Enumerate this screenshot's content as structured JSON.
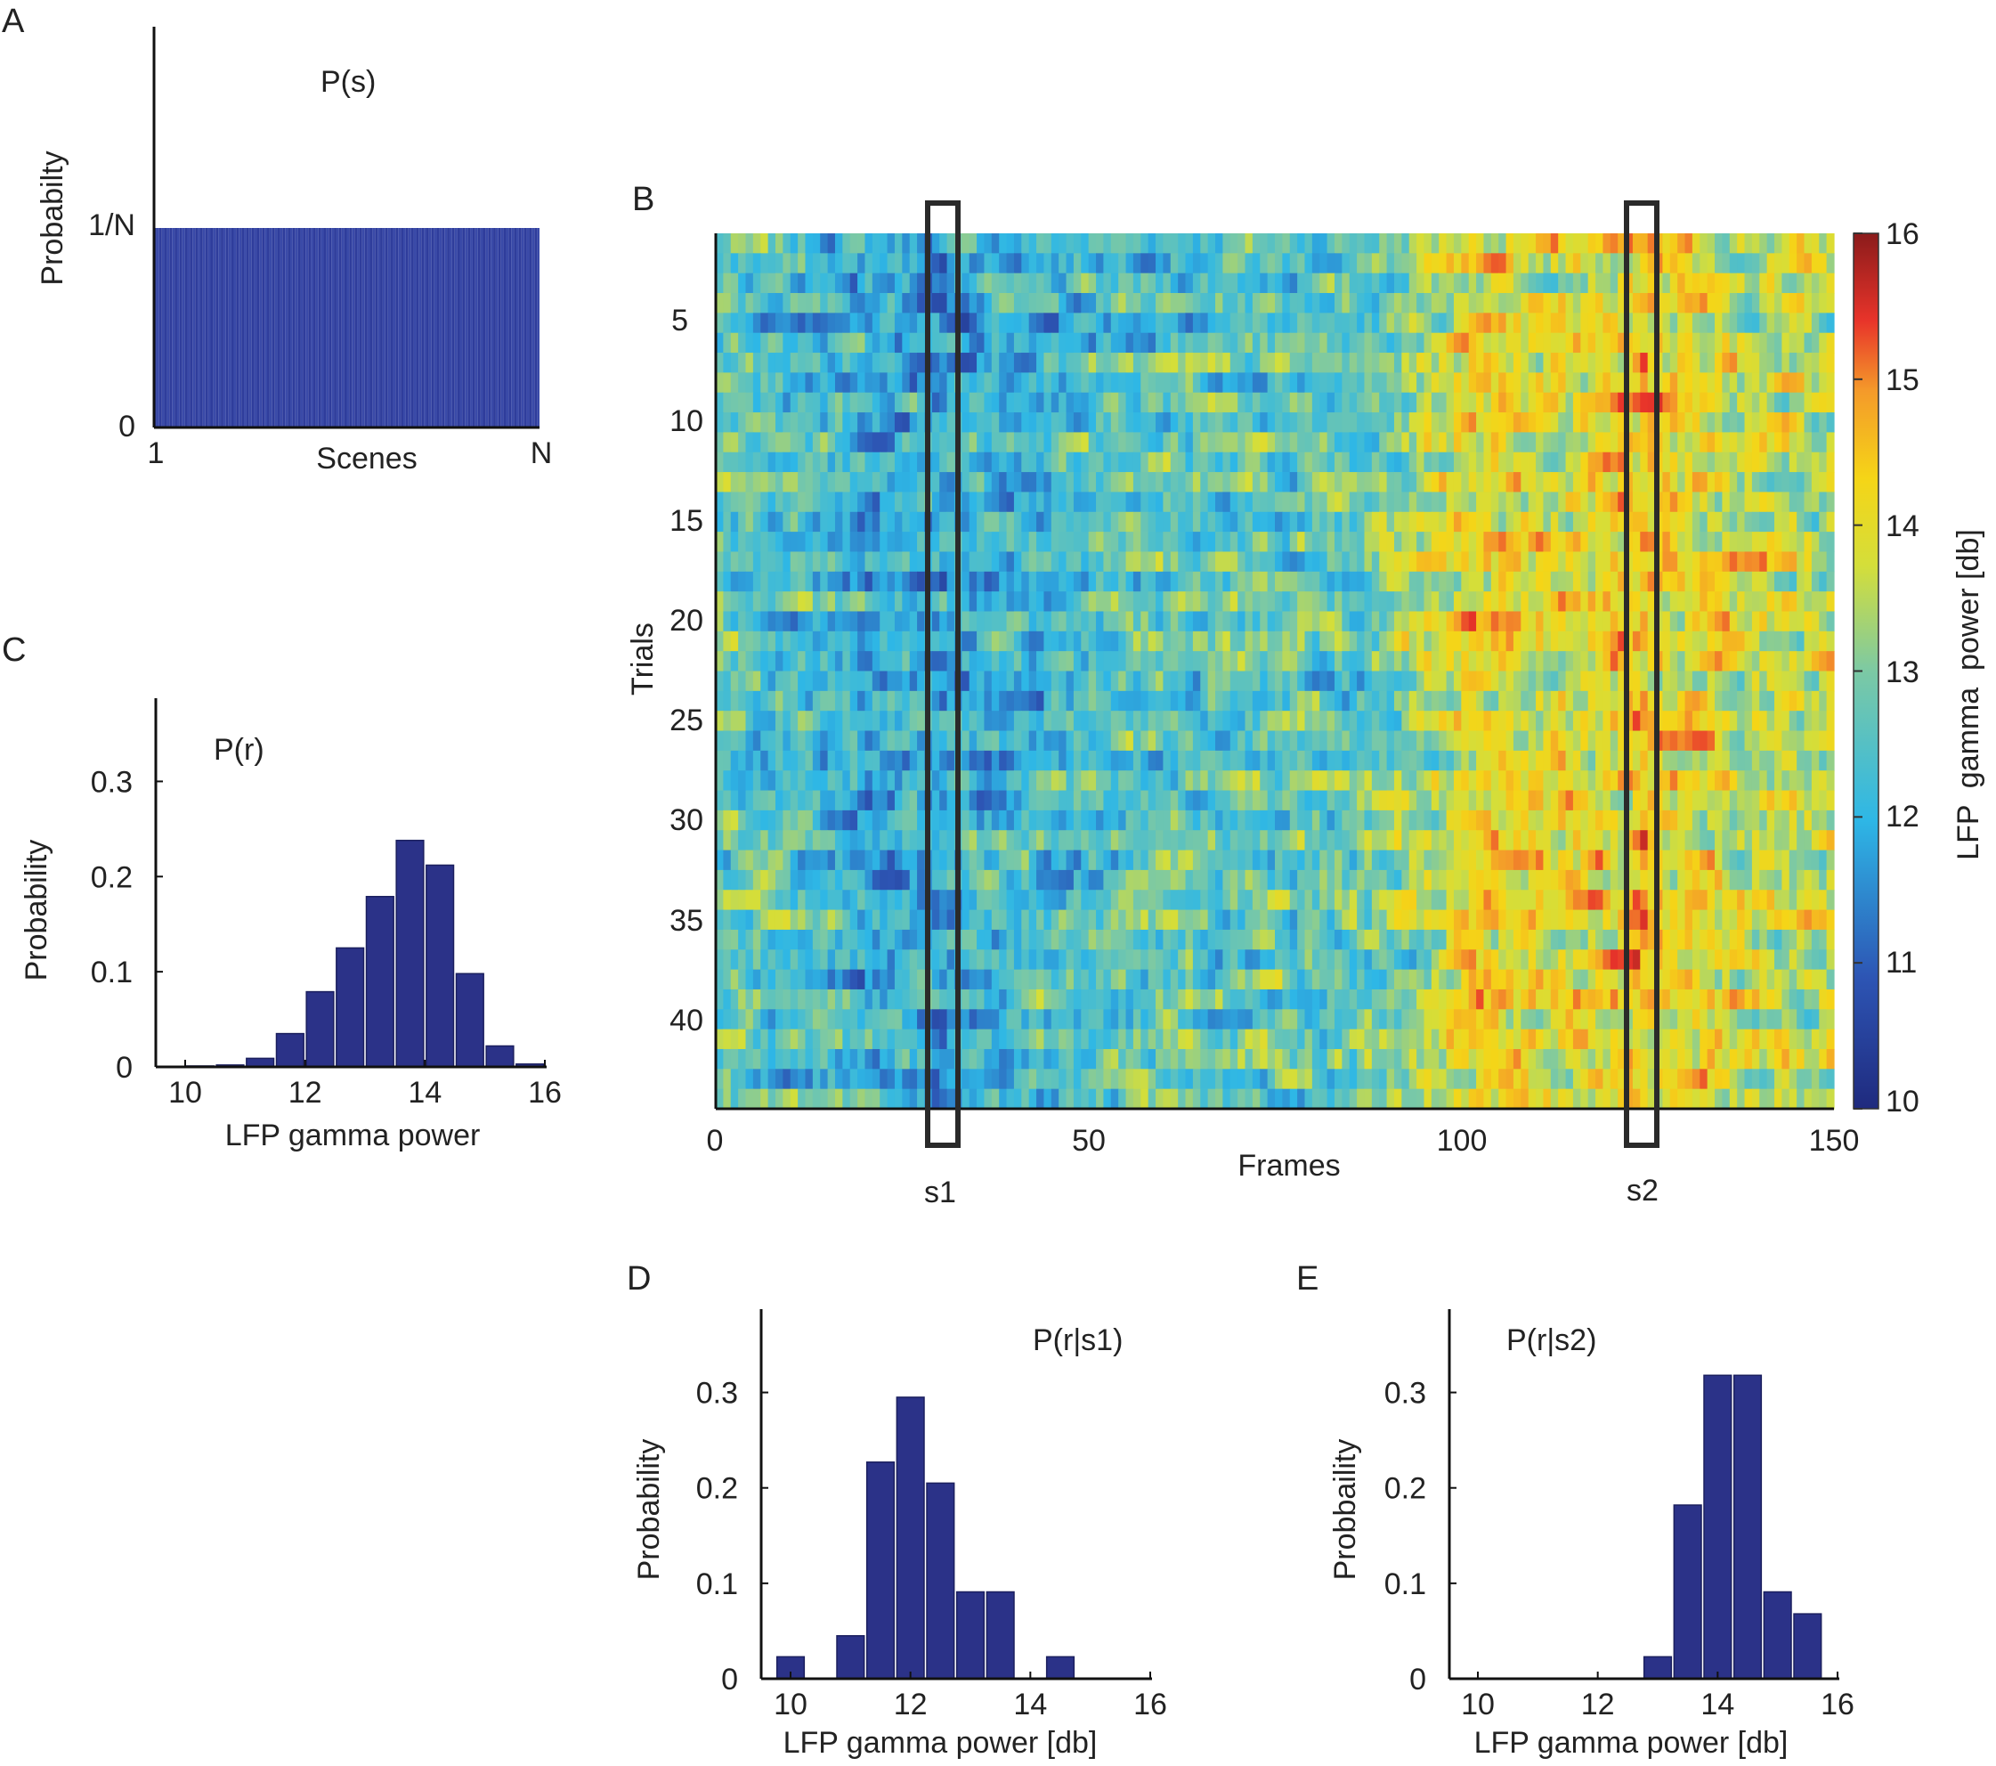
{
  "chart_data": [
    {
      "id": "A",
      "type": "bar",
      "panel_label": "A",
      "annotation": "P(s)",
      "xlabel": "Scenes",
      "ylabel": "Probabilty",
      "x_tick_labels": [
        "1",
        "N"
      ],
      "y_tick_labels": [
        "0",
        "1/N"
      ],
      "n_scenes": 150,
      "value": 1.0,
      "note": "uniform distribution, value is 1/N"
    },
    {
      "id": "B",
      "type": "heatmap",
      "panel_label": "B",
      "xlabel": "Frames",
      "ylabel": "Trials",
      "xlim": [
        0,
        150
      ],
      "ylim": [
        1,
        44
      ],
      "x_ticks": [
        0,
        50,
        100,
        150
      ],
      "y_ticks": [
        5,
        10,
        15,
        20,
        25,
        30,
        35,
        40
      ],
      "n_frames": 150,
      "n_trials": 44,
      "colorbar": {
        "label": "LFP  gamma  power [db]",
        "min": 10,
        "max": 16,
        "ticks": [
          10,
          11,
          12,
          13,
          14,
          15,
          16
        ]
      },
      "highlights": [
        {
          "label": "s1",
          "frame": 30
        },
        {
          "label": "s2",
          "frame": 124
        }
      ],
      "frame_mean_profile": {
        "frames": [
          0,
          20,
          28,
          30,
          32,
          45,
          60,
          85,
          95,
          100,
          110,
          120,
          124,
          128,
          140,
          150
        ],
        "mean_power": [
          12.7,
          12.1,
          11.9,
          11.9,
          12.0,
          12.3,
          12.7,
          12.6,
          13.4,
          14.0,
          13.9,
          14.1,
          14.3,
          14.0,
          13.6,
          13.5
        ]
      }
    },
    {
      "id": "C",
      "type": "bar",
      "panel_label": "C",
      "annotation": "P(r)",
      "xlabel": "LFP gamma power",
      "ylabel": "Probability",
      "xlim": [
        10,
        16
      ],
      "ylim": [
        0,
        0.35
      ],
      "x_ticks": [
        10,
        12,
        14,
        16
      ],
      "y_ticks": [
        0,
        0.1,
        0.2,
        0.3
      ],
      "x_tick_labels": [
        "10",
        "12",
        "14",
        "16"
      ],
      "y_tick_labels": [
        "0",
        "0.1",
        "0.2",
        "0.3"
      ],
      "bin_width": 0.5,
      "bins": [
        10,
        10.5,
        11,
        11.5,
        12,
        12.5,
        13,
        13.5,
        14,
        14.5,
        15,
        15.5
      ],
      "values": [
        0.001,
        0.002,
        0.009,
        0.035,
        0.079,
        0.125,
        0.179,
        0.238,
        0.212,
        0.098,
        0.022,
        0.003
      ]
    },
    {
      "id": "D",
      "type": "bar",
      "panel_label": "D",
      "annotation": "P(r|s1)",
      "xlabel": "LFP gamma power [db]",
      "ylabel": "Probability",
      "xlim": [
        10,
        16
      ],
      "ylim": [
        0,
        0.35
      ],
      "x_ticks": [
        10,
        12,
        14,
        16
      ],
      "y_ticks": [
        0,
        0.1,
        0.2,
        0.3
      ],
      "x_tick_labels": [
        "10",
        "12",
        "14",
        "16"
      ],
      "y_tick_labels": [
        "0",
        "0.1",
        "0.2",
        "0.3"
      ],
      "bin_width": 0.5,
      "bins": [
        9.75,
        10.25,
        10.75,
        11.25,
        11.75,
        12.25,
        12.75,
        13.25,
        13.75,
        14.25
      ],
      "values": [
        0.023,
        0,
        0.045,
        0.227,
        0.295,
        0.205,
        0.091,
        0.091,
        0,
        0.023
      ]
    },
    {
      "id": "E",
      "type": "bar",
      "panel_label": "E",
      "annotation": "P(r|s2)",
      "xlabel": "LFP gamma power [db]",
      "ylabel": "Probbaility",
      "xlim": [
        10,
        16
      ],
      "ylim": [
        0,
        0.35
      ],
      "x_ticks": [
        10,
        12,
        14,
        16
      ],
      "y_ticks": [
        0,
        0.1,
        0.2,
        0.3
      ],
      "x_tick_labels": [
        "10",
        "12",
        "14",
        "16"
      ],
      "y_tick_labels": [
        "0",
        "0.1",
        "0.2",
        "0.3"
      ],
      "bin_width": 0.5,
      "bins": [
        12.75,
        13.25,
        13.75,
        14.25,
        14.75,
        15.25
      ],
      "values": [
        0.023,
        0.182,
        0.318,
        0.318,
        0.091,
        0.068
      ]
    }
  ]
}
